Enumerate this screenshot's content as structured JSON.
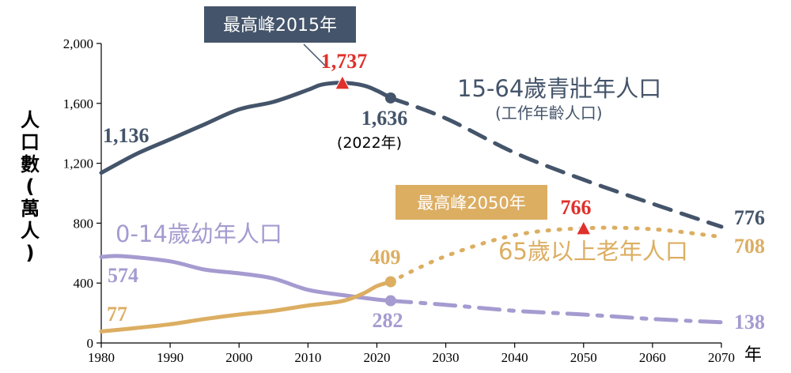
{
  "chart_data": {
    "type": "line",
    "ylabel": "人口數(萬人)",
    "xunit": "年",
    "xlim": [
      1980,
      2070
    ],
    "ylim": [
      0,
      2000
    ],
    "x_ticks": [
      1980,
      1990,
      2000,
      2010,
      2020,
      2030,
      2040,
      2050,
      2060,
      2070
    ],
    "y_ticks": [
      0,
      400,
      800,
      1200,
      1600,
      2000
    ],
    "y_tick_labels": [
      "0",
      "400",
      "800",
      "1,200",
      "1,600",
      "2,000"
    ],
    "grid": false,
    "colors": {
      "working": "#44546a",
      "young": "#a59bd0",
      "elderly": "#dcae62",
      "peak": "#e0302b"
    },
    "series": [
      {
        "key": "working",
        "name": "15-64歲青壯年人口",
        "subname": "(工作年齡人口)",
        "actual": [
          [
            1980,
            1136
          ],
          [
            1985,
            1260
          ],
          [
            1990,
            1360
          ],
          [
            1995,
            1460
          ],
          [
            2000,
            1560
          ],
          [
            2005,
            1610
          ],
          [
            2010,
            1690
          ],
          [
            2012,
            1725
          ],
          [
            2015,
            1737
          ],
          [
            2018,
            1720
          ],
          [
            2020,
            1685
          ],
          [
            2022,
            1636
          ]
        ],
        "projected": [
          [
            2022,
            1636
          ],
          [
            2030,
            1500
          ],
          [
            2040,
            1270
          ],
          [
            2050,
            1090
          ],
          [
            2060,
            930
          ],
          [
            2070,
            776
          ]
        ],
        "start_label": "1,136",
        "end_label": "776"
      },
      {
        "key": "young",
        "name": "0-14歲幼年人口",
        "actual": [
          [
            1980,
            574
          ],
          [
            1983,
            580
          ],
          [
            1990,
            545
          ],
          [
            1995,
            490
          ],
          [
            2000,
            465
          ],
          [
            2005,
            430
          ],
          [
            2010,
            355
          ],
          [
            2015,
            320
          ],
          [
            2020,
            290
          ],
          [
            2022,
            282
          ]
        ],
        "projected": [
          [
            2022,
            282
          ],
          [
            2030,
            255
          ],
          [
            2040,
            215
          ],
          [
            2050,
            190
          ],
          [
            2060,
            160
          ],
          [
            2070,
            138
          ]
        ],
        "start_label": "574",
        "end_label": "138"
      },
      {
        "key": "elderly",
        "name": "65歲以上老年人口",
        "actual": [
          [
            1980,
            77
          ],
          [
            1985,
            100
          ],
          [
            1990,
            125
          ],
          [
            1995,
            160
          ],
          [
            2000,
            190
          ],
          [
            2005,
            215
          ],
          [
            2010,
            250
          ],
          [
            2015,
            280
          ],
          [
            2018,
            330
          ],
          [
            2020,
            380
          ],
          [
            2022,
            409
          ]
        ],
        "projected": [
          [
            2022,
            409
          ],
          [
            2030,
            580
          ],
          [
            2040,
            720
          ],
          [
            2050,
            766
          ],
          [
            2060,
            760
          ],
          [
            2070,
            708
          ]
        ],
        "start_label": "77",
        "end_label": "708"
      }
    ],
    "annotations": {
      "working_peak": {
        "x": 2015,
        "y": 1737,
        "value_label": "1,737",
        "box_text": "最高峰2015年"
      },
      "working_2022": {
        "x": 2022,
        "y": 1636,
        "value_label": "1,636",
        "year_note": "(2022年)"
      },
      "young_2022": {
        "x": 2022,
        "y": 282,
        "value_label": "282"
      },
      "elderly_2022": {
        "x": 2022,
        "y": 409,
        "value_label": "409"
      },
      "elderly_peak": {
        "x": 2050,
        "y": 766,
        "value_label": "766",
        "box_text": "最高峰2050年"
      }
    }
  }
}
